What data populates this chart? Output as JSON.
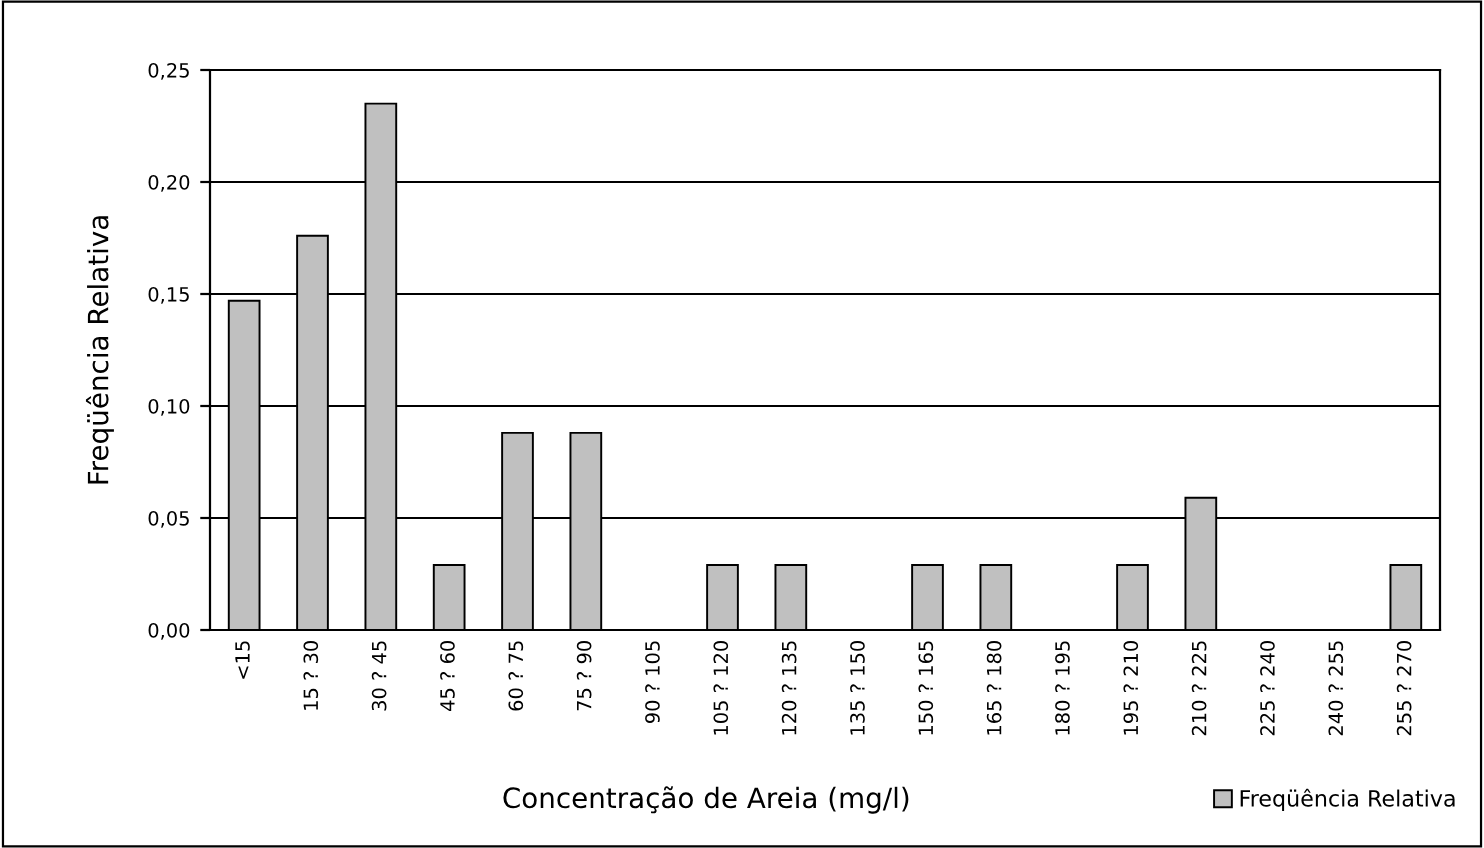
{
  "chart_data": {
    "type": "bar",
    "xlabel": "Concentração de Areia (mg/l)",
    "ylabel": "Freqüência Relativa",
    "categories": [
      "<15",
      "15 ? 30",
      "30 ? 45",
      "45 ? 60",
      "60 ? 75",
      "75 ? 90",
      "90 ? 105",
      "105 ? 120",
      "120 ? 135",
      "135 ? 150",
      "150 ? 165",
      "165 ? 180",
      "180 ? 195",
      "195 ? 210",
      "210 ? 225",
      "225 ? 240",
      "240 ? 255",
      "255 ? 270"
    ],
    "series": [
      {
        "name": "Freqüência Relativa",
        "color": "#c0c0c0",
        "values": [
          0.147,
          0.176,
          0.235,
          0.029,
          0.088,
          0.088,
          0,
          0.029,
          0.029,
          0,
          0.029,
          0.029,
          0,
          0.029,
          0.059,
          0,
          0,
          0.029
        ]
      }
    ],
    "ylim": [
      0,
      0.25
    ],
    "yticks": [
      {
        "value": 0,
        "label": "0,00"
      },
      {
        "value": 0.05,
        "label": "0,05"
      },
      {
        "value": 0.1,
        "label": "0,10"
      },
      {
        "value": 0.15,
        "label": "0,15"
      },
      {
        "value": 0.2,
        "label": "0,20"
      },
      {
        "value": 0.25,
        "label": "0,25"
      }
    ],
    "grid": "y",
    "legend": "bottom right"
  }
}
